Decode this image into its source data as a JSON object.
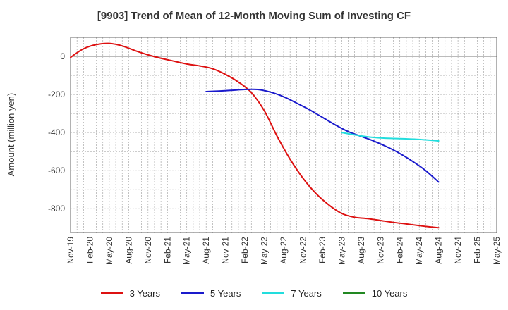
{
  "chart_data": {
    "type": "line",
    "title": "[9903]  Trend of Mean of 12-Month Moving Sum of Investing CF",
    "xlabel": "",
    "ylabel": "Amount (million yen)",
    "ylim": [
      -925,
      100
    ],
    "yticks": [
      0,
      -200,
      -400,
      -600,
      -800
    ],
    "grid": true,
    "legend_position": "bottom",
    "x_ticks": [
      "Nov-19",
      "Feb-20",
      "May-20",
      "Aug-20",
      "Nov-20",
      "Feb-21",
      "May-21",
      "Aug-21",
      "Nov-21",
      "Feb-22",
      "May-22",
      "Aug-22",
      "Nov-22",
      "Feb-23",
      "May-23",
      "Aug-23",
      "Nov-23",
      "Feb-24",
      "May-24",
      "Aug-24",
      "Nov-24",
      "Feb-25",
      "May-25"
    ],
    "series": [
      {
        "name": "3 Years",
        "color": "#dd1111",
        "x": [
          "Nov-19",
          "Jan-20",
          "Mar-20",
          "May-20",
          "Jul-20",
          "Sep-20",
          "Nov-20",
          "Jan-21",
          "Mar-21",
          "May-21",
          "Jul-21",
          "Sep-21",
          "Nov-21",
          "Jan-22",
          "Mar-22",
          "May-22",
          "Jul-22",
          "Sep-22",
          "Nov-22",
          "Jan-23",
          "Mar-23",
          "May-23",
          "Jul-23",
          "Sep-23",
          "Nov-23",
          "Jan-24",
          "Mar-24",
          "May-24",
          "Jul-24",
          "Aug-24"
        ],
        "values": [
          -5,
          40,
          62,
          68,
          55,
          30,
          8,
          -10,
          -25,
          -40,
          -50,
          -65,
          -95,
          -135,
          -190,
          -285,
          -420,
          -540,
          -640,
          -720,
          -780,
          -825,
          -845,
          -852,
          -862,
          -872,
          -880,
          -889,
          -897,
          -900
        ]
      },
      {
        "name": "5 Years",
        "color": "#1a1acc",
        "x": [
          "Aug-21",
          "Oct-21",
          "Dec-21",
          "Feb-22",
          "Apr-22",
          "Jun-22",
          "Aug-22",
          "Oct-22",
          "Dec-22",
          "Feb-23",
          "Apr-23",
          "Jun-23",
          "Aug-23",
          "Oct-23",
          "Dec-23",
          "Feb-24",
          "Apr-24",
          "Jun-24",
          "Aug-24"
        ],
        "values": [
          -185,
          -182,
          -178,
          -174,
          -174,
          -188,
          -212,
          -245,
          -280,
          -320,
          -360,
          -395,
          -420,
          -445,
          -475,
          -510,
          -552,
          -600,
          -660
        ]
      },
      {
        "name": "7 Years",
        "color": "#22dddd",
        "x": [
          "May-23",
          "Jul-23",
          "Sep-23",
          "Nov-23",
          "Jan-24",
          "Mar-24",
          "May-24",
          "Jul-24",
          "Aug-24"
        ],
        "values": [
          -400,
          -412,
          -422,
          -428,
          -431,
          -433,
          -436,
          -441,
          -444
        ]
      },
      {
        "name": "10 Years",
        "color": "#228822",
        "x": [],
        "values": []
      }
    ]
  }
}
